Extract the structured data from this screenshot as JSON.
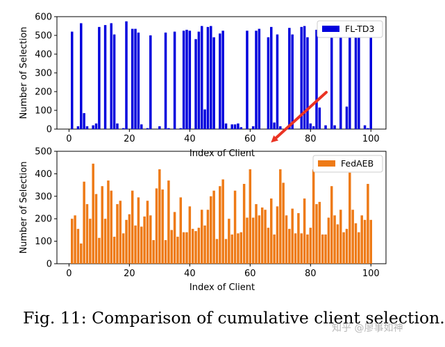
{
  "caption": "Fig. 11: Comparison of cumulative client selection.",
  "watermark": "知乎 @廖事如神",
  "colors": {
    "fltd3": "#0000dd",
    "fedaeb": "#ee7a16",
    "arrow": "#ea3323"
  },
  "chart_data": [
    {
      "type": "bar",
      "xlabel": "Index of Client",
      "ylabel": "Number of Selection",
      "ylim": [
        0,
        600
      ],
      "xlim": [
        -4,
        105
      ],
      "xticks": [
        0,
        20,
        40,
        60,
        80,
        100
      ],
      "yticks": [
        0,
        100,
        200,
        300,
        400,
        500,
        600
      ],
      "legend_position": "top-right",
      "annotation": "red arrow pointing down-left toward the top of this panel",
      "series": [
        {
          "name": "FL-TD3",
          "color": "#0000dd",
          "x": [
            1,
            2,
            3,
            4,
            5,
            6,
            7,
            8,
            9,
            10,
            11,
            12,
            13,
            14,
            15,
            16,
            17,
            18,
            19,
            20,
            21,
            22,
            23,
            24,
            25,
            26,
            27,
            28,
            29,
            30,
            31,
            32,
            33,
            34,
            35,
            36,
            37,
            38,
            39,
            40,
            41,
            42,
            43,
            44,
            45,
            46,
            47,
            48,
            49,
            50,
            51,
            52,
            53,
            54,
            55,
            56,
            57,
            58,
            59,
            60,
            61,
            62,
            63,
            64,
            65,
            66,
            67,
            68,
            69,
            70,
            71,
            72,
            73,
            74,
            75,
            76,
            77,
            78,
            79,
            80,
            81,
            82,
            83,
            84,
            85,
            86,
            87,
            88,
            89,
            90,
            91,
            92,
            93,
            94,
            95,
            96,
            97,
            98,
            99,
            100
          ],
          "values": [
            520,
            0,
            15,
            565,
            85,
            15,
            0,
            20,
            30,
            545,
            0,
            555,
            0,
            565,
            505,
            30,
            0,
            5,
            575,
            0,
            535,
            535,
            515,
            25,
            0,
            5,
            500,
            0,
            0,
            15,
            0,
            515,
            5,
            0,
            520,
            0,
            5,
            525,
            530,
            525,
            0,
            480,
            520,
            550,
            105,
            545,
            550,
            490,
            0,
            510,
            525,
            30,
            0,
            25,
            25,
            30,
            10,
            0,
            525,
            0,
            15,
            525,
            535,
            0,
            0,
            490,
            545,
            35,
            505,
            15,
            0,
            0,
            540,
            505,
            0,
            0,
            545,
            550,
            490,
            30,
            15,
            530,
            115,
            0,
            20,
            0,
            525,
            20,
            0,
            530,
            0,
            120,
            540,
            0,
            545,
            535,
            0,
            20,
            5,
            505
          ]
        }
      ]
    },
    {
      "type": "bar",
      "xlabel": "Index of Client",
      "ylabel": "Number of Selection",
      "ylim": [
        0,
        500
      ],
      "xlim": [
        -4,
        105
      ],
      "xticks": [
        0,
        20,
        40,
        60,
        80,
        100
      ],
      "yticks": [
        0,
        100,
        200,
        300,
        400,
        500
      ],
      "legend_position": "top-right",
      "series": [
        {
          "name": "FedAEB",
          "color": "#ee7a16",
          "x": [
            1,
            2,
            3,
            4,
            5,
            6,
            7,
            8,
            9,
            10,
            11,
            12,
            13,
            14,
            15,
            16,
            17,
            18,
            19,
            20,
            21,
            22,
            23,
            24,
            25,
            26,
            27,
            28,
            29,
            30,
            31,
            32,
            33,
            34,
            35,
            36,
            37,
            38,
            39,
            40,
            41,
            42,
            43,
            44,
            45,
            46,
            47,
            48,
            49,
            50,
            51,
            52,
            53,
            54,
            55,
            56,
            57,
            58,
            59,
            60,
            61,
            62,
            63,
            64,
            65,
            66,
            67,
            68,
            69,
            70,
            71,
            72,
            73,
            74,
            75,
            76,
            77,
            78,
            79,
            80,
            81,
            82,
            83,
            84,
            85,
            86,
            87,
            88,
            89,
            90,
            91,
            92,
            93,
            94,
            95,
            96,
            97,
            98,
            99,
            100
          ],
          "values": [
            200,
            215,
            155,
            90,
            365,
            265,
            200,
            445,
            310,
            115,
            345,
            200,
            370,
            325,
            120,
            265,
            280,
            135,
            195,
            220,
            325,
            170,
            295,
            165,
            210,
            280,
            215,
            105,
            335,
            420,
            330,
            105,
            370,
            150,
            230,
            120,
            295,
            140,
            140,
            255,
            155,
            145,
            160,
            240,
            170,
            240,
            300,
            325,
            110,
            345,
            375,
            110,
            200,
            130,
            325,
            135,
            140,
            355,
            205,
            420,
            205,
            265,
            215,
            250,
            240,
            160,
            290,
            130,
            255,
            420,
            360,
            215,
            155,
            245,
            135,
            225,
            135,
            290,
            130,
            160,
            420,
            265,
            275,
            130,
            130,
            205,
            345,
            215,
            175,
            240,
            140,
            155,
            405,
            240,
            180,
            140,
            215,
            195,
            355,
            195
          ]
        }
      ]
    }
  ]
}
